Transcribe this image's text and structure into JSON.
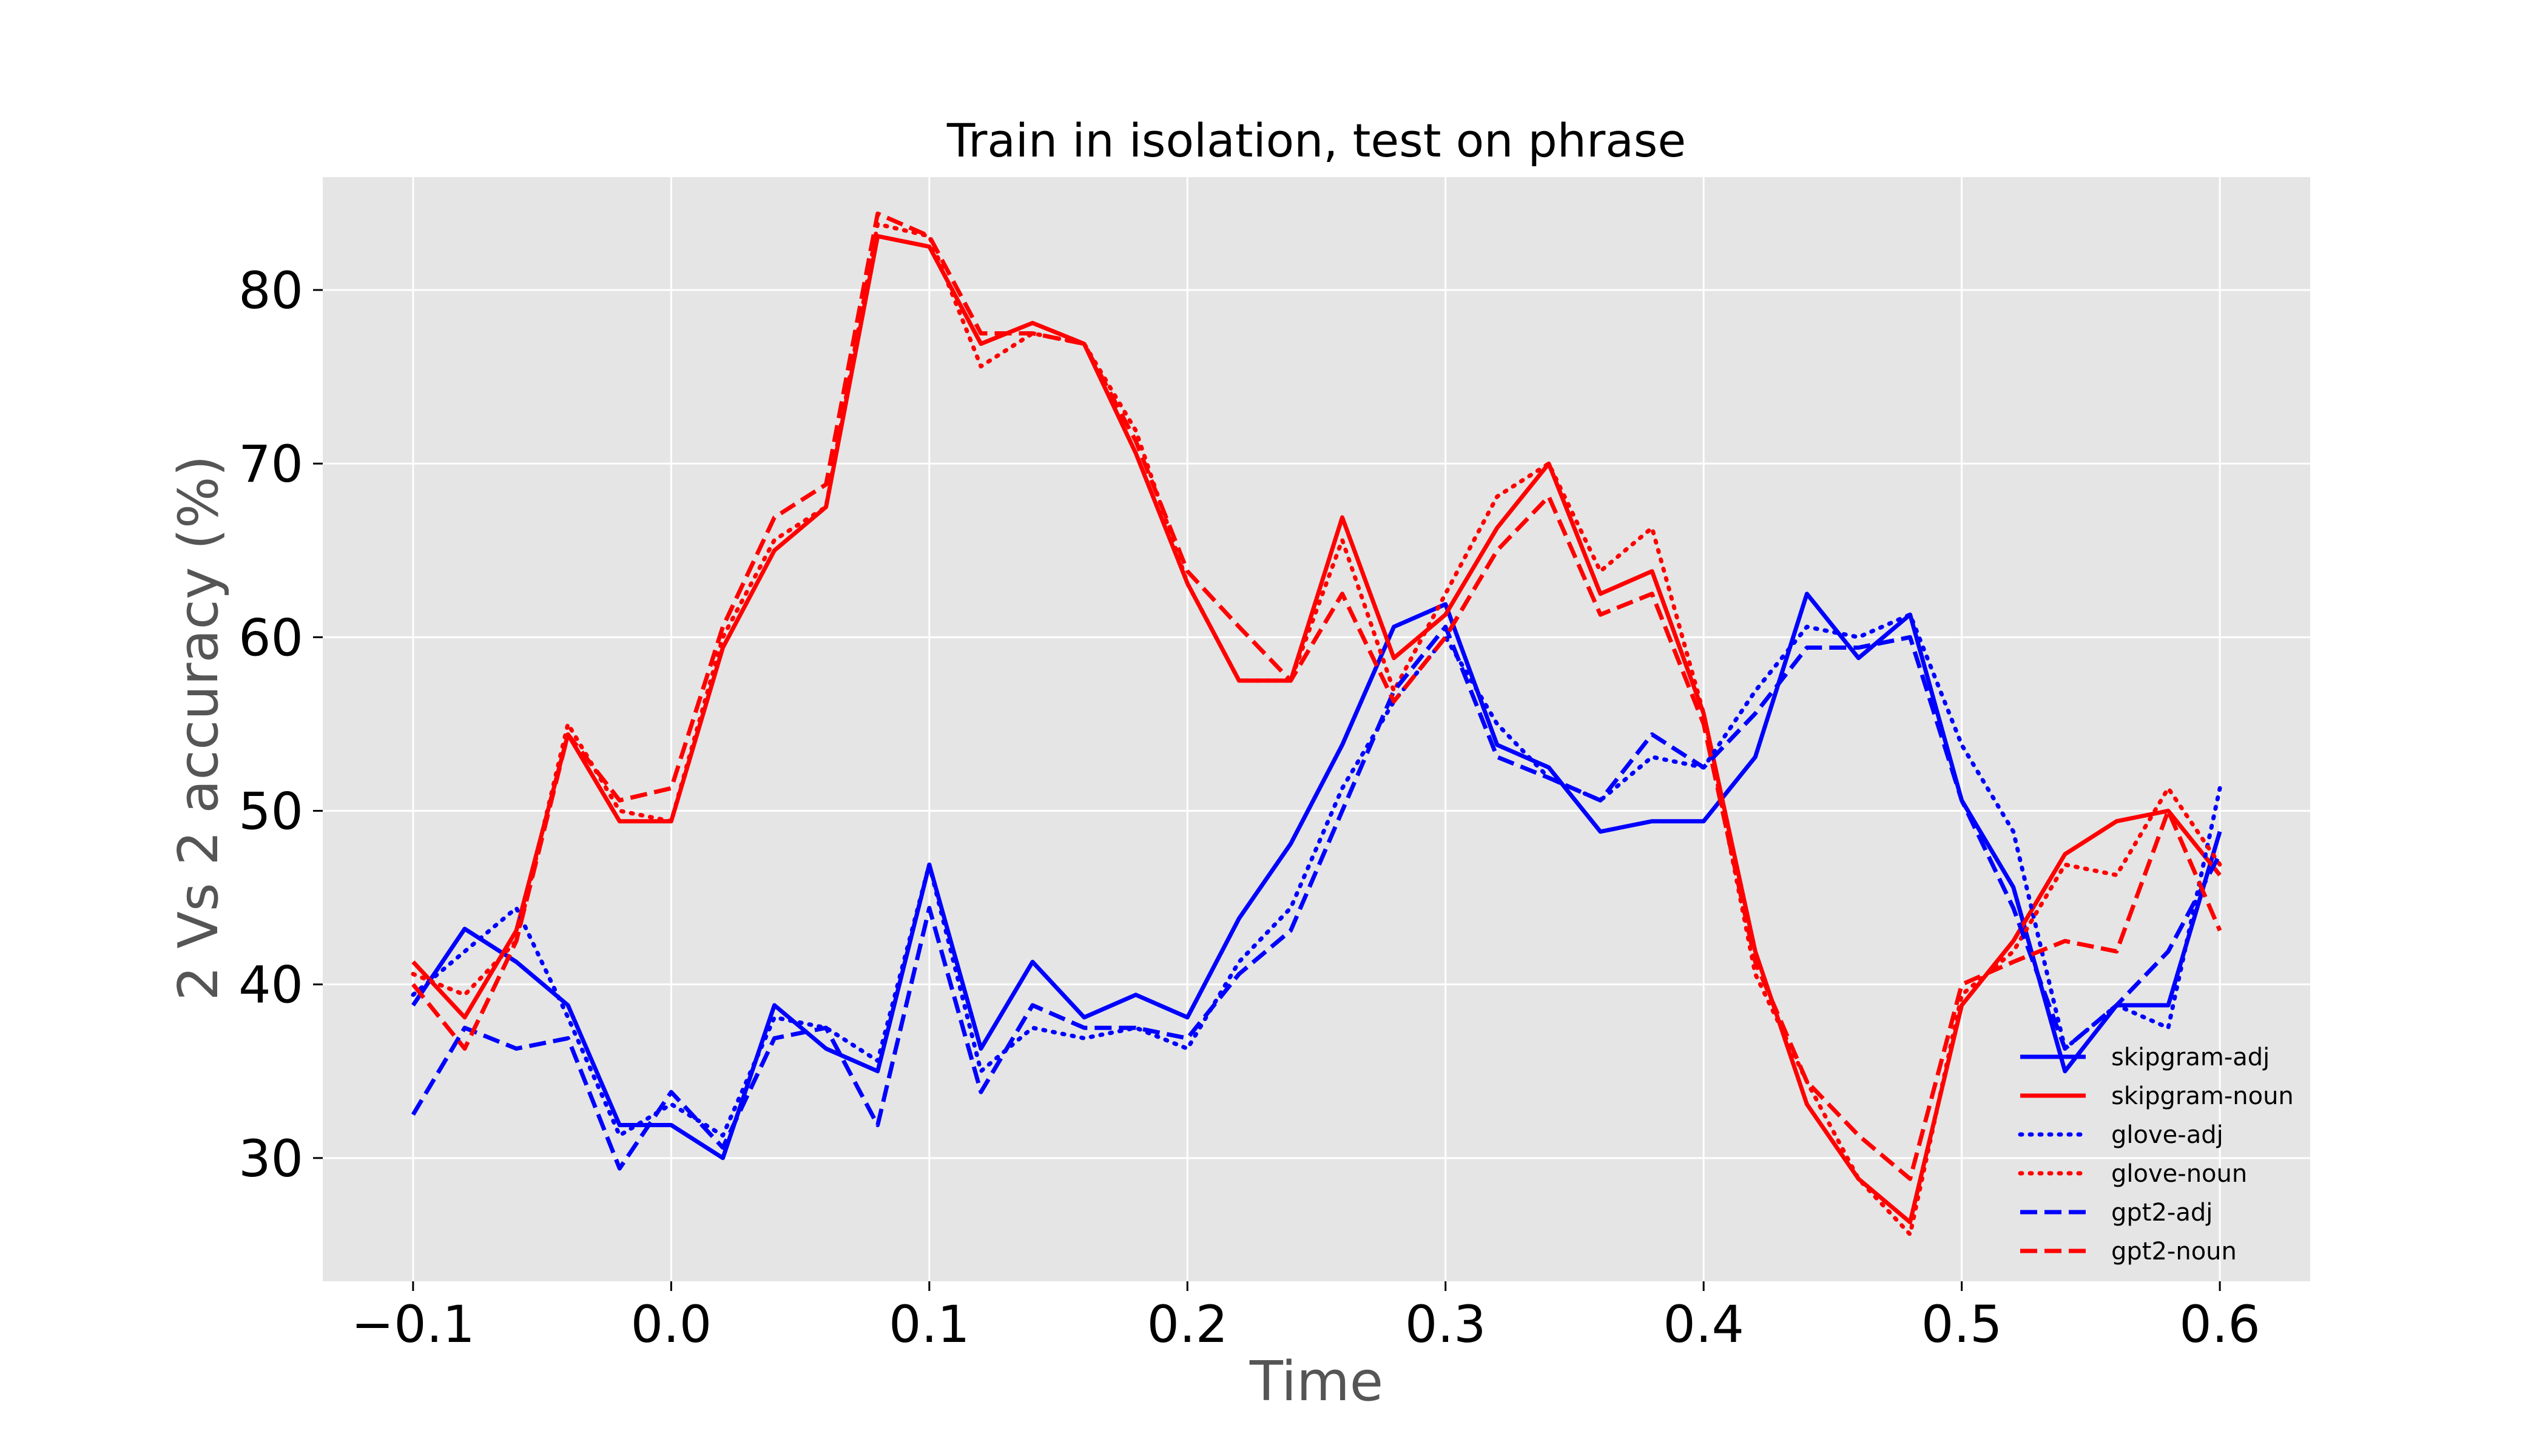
{
  "chart_data": {
    "type": "line",
    "title": "Train in isolation, test on phrase",
    "xlabel": "Time",
    "ylabel": "2 Vs 2 accuracy (%)",
    "xlim": [
      -0.135,
      0.635
    ],
    "ylim": [
      22.9,
      86.5
    ],
    "xticks": [
      -0.1,
      0.0,
      0.1,
      0.2,
      0.3,
      0.4,
      0.5,
      0.6
    ],
    "xtick_labels": [
      "−0.1",
      "0.0",
      "0.1",
      "0.2",
      "0.3",
      "0.4",
      "0.5",
      "0.6"
    ],
    "yticks": [
      30,
      40,
      50,
      60,
      70,
      80
    ],
    "ytick_labels": [
      "30",
      "40",
      "50",
      "60",
      "70",
      "80"
    ],
    "grid": true,
    "legend_position": "lower-right",
    "x": [
      -0.1,
      -0.08,
      -0.06,
      -0.04,
      -0.02,
      0.0,
      0.02,
      0.04,
      0.06,
      0.08,
      0.1,
      0.12,
      0.14,
      0.16,
      0.18,
      0.2,
      0.22,
      0.24,
      0.26,
      0.28,
      0.3,
      0.32,
      0.34,
      0.36,
      0.38,
      0.4,
      0.42,
      0.44,
      0.46,
      0.48,
      0.5,
      0.52,
      0.54,
      0.56,
      0.58,
      0.6
    ],
    "series": [
      {
        "name": "skipgram-adj",
        "color": "#0000ff",
        "dash": "solid",
        "values": [
          38.8,
          43.2,
          41.3,
          38.8,
          31.9,
          31.9,
          30.0,
          38.8,
          36.3,
          35.0,
          46.9,
          36.3,
          41.3,
          38.1,
          39.4,
          38.1,
          43.8,
          48.1,
          53.8,
          60.6,
          61.9,
          53.8,
          52.5,
          48.8,
          49.4,
          49.4,
          53.1,
          62.5,
          58.8,
          61.3,
          50.6,
          45.6,
          35.0,
          38.8,
          38.8,
          48.8
        ]
      },
      {
        "name": "skipgram-noun",
        "color": "#ff0000",
        "dash": "solid",
        "values": [
          41.3,
          38.1,
          43.1,
          54.4,
          49.4,
          49.4,
          59.4,
          65.0,
          67.5,
          83.1,
          82.5,
          76.9,
          78.1,
          76.9,
          70.6,
          63.1,
          57.5,
          57.5,
          66.9,
          58.8,
          61.3,
          66.3,
          70.0,
          62.5,
          63.8,
          55.6,
          41.9,
          33.1,
          28.8,
          26.3,
          38.8,
          42.5,
          47.5,
          49.4,
          50.0,
          46.3
        ]
      },
      {
        "name": "glove-adj",
        "color": "#0000ff",
        "dash": "dotted",
        "values": [
          39.4,
          41.9,
          44.4,
          38.1,
          31.3,
          33.1,
          31.3,
          38.1,
          37.5,
          35.6,
          46.9,
          35.0,
          37.5,
          36.9,
          37.5,
          36.3,
          41.3,
          44.4,
          51.3,
          56.3,
          60.0,
          55.0,
          51.9,
          50.6,
          53.1,
          52.5,
          56.9,
          60.6,
          60.0,
          61.3,
          53.8,
          48.8,
          36.3,
          38.8,
          37.5,
          51.3
        ]
      },
      {
        "name": "glove-noun",
        "color": "#ff0000",
        "dash": "dotted",
        "values": [
          40.6,
          39.4,
          42.5,
          55.0,
          50.0,
          49.4,
          60.0,
          65.6,
          67.5,
          83.8,
          83.1,
          75.6,
          77.5,
          76.9,
          71.9,
          63.1,
          57.5,
          57.5,
          65.6,
          56.9,
          62.5,
          68.1,
          70.0,
          63.8,
          66.3,
          55.6,
          40.6,
          34.4,
          28.8,
          25.6,
          39.4,
          41.9,
          46.9,
          46.3,
          51.3,
          46.9
        ]
      },
      {
        "name": "gpt2-adj",
        "color": "#0000ff",
        "dash": "dashed",
        "values": [
          32.5,
          37.5,
          36.3,
          36.9,
          29.4,
          33.8,
          30.6,
          36.9,
          37.5,
          31.9,
          44.4,
          33.8,
          38.8,
          37.5,
          37.5,
          36.9,
          40.6,
          43.1,
          50.0,
          56.9,
          60.6,
          53.1,
          51.9,
          50.6,
          54.4,
          52.5,
          55.6,
          59.4,
          59.4,
          60.0,
          50.6,
          44.4,
          36.3,
          38.8,
          41.9,
          47.5
        ]
      },
      {
        "name": "gpt2-noun",
        "color": "#ff0000",
        "dash": "dashed",
        "values": [
          40.0,
          36.3,
          42.5,
          54.4,
          50.6,
          51.3,
          60.6,
          66.9,
          68.8,
          84.4,
          83.1,
          77.5,
          77.5,
          76.9,
          71.3,
          63.8,
          60.6,
          57.5,
          62.5,
          56.3,
          60.0,
          65.0,
          68.1,
          61.3,
          62.5,
          55.0,
          41.3,
          34.4,
          31.3,
          28.8,
          40.0,
          41.3,
          42.5,
          41.9,
          50.0,
          43.1
        ]
      }
    ]
  }
}
